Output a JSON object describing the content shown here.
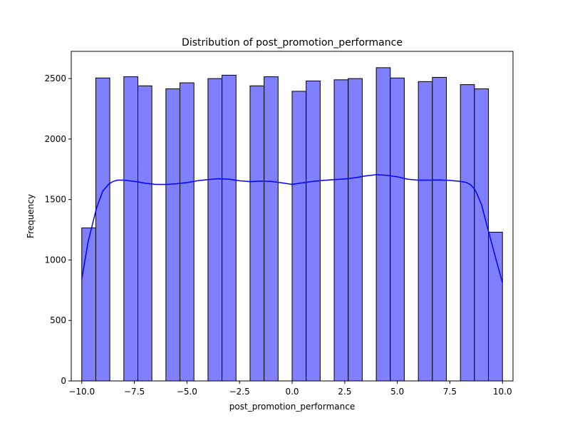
{
  "chart_data": {
    "type": "bar",
    "title": "Distribution of post_promotion_performance",
    "xlabel": "post_promotion_performance",
    "ylabel": "Frequency",
    "xlim": [
      -10.5,
      10.5
    ],
    "ylim": [
      0,
      2725
    ],
    "x_ticks": [
      -10.0,
      -7.5,
      -5.0,
      -2.5,
      0.0,
      2.5,
      5.0,
      7.5,
      10.0
    ],
    "x_tick_labels": [
      "−10.0",
      "−7.5",
      "−5.0",
      "−2.5",
      "0.0",
      "2.5",
      "5.0",
      "7.5",
      "10.0"
    ],
    "y_ticks": [
      0,
      500,
      1000,
      1500,
      2000,
      2500
    ],
    "y_tick_labels": [
      "0",
      "500",
      "1000",
      "1500",
      "2000",
      "2500"
    ],
    "bins": [
      {
        "x0": -10.0,
        "x1": -9.333,
        "value": 1265
      },
      {
        "x0": -9.333,
        "x1": -8.667,
        "value": 2505
      },
      {
        "x0": -8.0,
        "x1": -7.333,
        "value": 2515
      },
      {
        "x0": -7.333,
        "x1": -6.667,
        "value": 2440
      },
      {
        "x0": -6.0,
        "x1": -5.333,
        "value": 2415
      },
      {
        "x0": -5.333,
        "x1": -4.667,
        "value": 2465
      },
      {
        "x0": -4.0,
        "x1": -3.333,
        "value": 2500
      },
      {
        "x0": -3.333,
        "x1": -2.667,
        "value": 2528
      },
      {
        "x0": -2.0,
        "x1": -1.333,
        "value": 2440
      },
      {
        "x0": -1.333,
        "x1": -0.667,
        "value": 2515
      },
      {
        "x0": 0.0,
        "x1": 0.667,
        "value": 2395
      },
      {
        "x0": 0.667,
        "x1": 1.333,
        "value": 2480
      },
      {
        "x0": 2.0,
        "x1": 2.667,
        "value": 2490
      },
      {
        "x0": 2.667,
        "x1": 3.333,
        "value": 2500
      },
      {
        "x0": 4.0,
        "x1": 4.667,
        "value": 2590
      },
      {
        "x0": 4.667,
        "x1": 5.333,
        "value": 2505
      },
      {
        "x0": 6.0,
        "x1": 6.667,
        "value": 2475
      },
      {
        "x0": 6.667,
        "x1": 7.333,
        "value": 2510
      },
      {
        "x0": 8.0,
        "x1": 8.667,
        "value": 2450
      },
      {
        "x0": 8.667,
        "x1": 9.333,
        "value": 2415
      },
      {
        "x0": 9.333,
        "x1": 10.0,
        "value": 1230
      }
    ],
    "kde": {
      "x": [
        -10.0,
        -9.7,
        -9.3,
        -9.0,
        -8.7,
        -8.5,
        -8.3,
        -8.0,
        -7.5,
        -7.0,
        -6.5,
        -6.0,
        -5.5,
        -5.0,
        -4.5,
        -4.0,
        -3.5,
        -3.0,
        -2.5,
        -2.0,
        -1.5,
        -1.0,
        -0.5,
        0.0,
        0.5,
        1.0,
        1.5,
        2.0,
        2.5,
        3.0,
        3.5,
        4.0,
        4.5,
        5.0,
        5.5,
        6.0,
        6.5,
        7.0,
        7.5,
        8.0,
        8.3,
        8.5,
        8.7,
        9.0,
        9.3,
        9.7,
        10.0
      ],
      "y": [
        840,
        1150,
        1430,
        1570,
        1630,
        1650,
        1660,
        1660,
        1650,
        1635,
        1625,
        1625,
        1630,
        1640,
        1655,
        1665,
        1672,
        1668,
        1655,
        1648,
        1652,
        1650,
        1638,
        1625,
        1638,
        1650,
        1658,
        1665,
        1670,
        1680,
        1695,
        1705,
        1700,
        1688,
        1668,
        1660,
        1660,
        1662,
        1658,
        1650,
        1640,
        1620,
        1580,
        1460,
        1260,
        1000,
        810
      ]
    },
    "colors": {
      "bar_fill": "#8080ff",
      "bar_edge": "#000000",
      "kde_line": "#0000ff"
    },
    "grid": false,
    "legend": "none"
  }
}
